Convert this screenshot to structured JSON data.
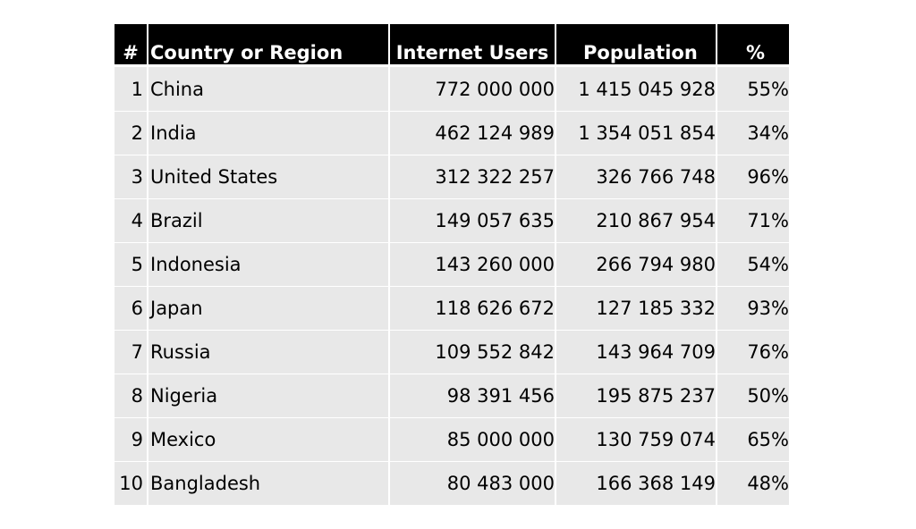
{
  "table": {
    "headers": {
      "rank": "#",
      "country": "Country or Region",
      "users": "Internet Users",
      "population": "Population",
      "percent": "%"
    },
    "rows": [
      {
        "rank": "1",
        "country": "China",
        "users": "772 000 000",
        "population": "1 415 045 928",
        "percent": "55%"
      },
      {
        "rank": "2",
        "country": "India",
        "users": "462 124 989",
        "population": "1 354 051 854",
        "percent": "34%"
      },
      {
        "rank": "3",
        "country": "United States",
        "users": "312 322 257",
        "population": "326 766 748",
        "percent": "96%"
      },
      {
        "rank": "4",
        "country": "Brazil",
        "users": "149 057 635",
        "population": "210 867 954",
        "percent": "71%"
      },
      {
        "rank": "5",
        "country": "Indonesia",
        "users": "143 260 000",
        "population": "266 794 980",
        "percent": "54%"
      },
      {
        "rank": "6",
        "country": "Japan",
        "users": "118 626 672",
        "population": "127 185 332",
        "percent": "93%"
      },
      {
        "rank": "7",
        "country": "Russia",
        "users": "109 552 842",
        "population": "143 964 709",
        "percent": "76%"
      },
      {
        "rank": "8",
        "country": "Nigeria",
        "users": "98 391 456",
        "population": "195 875 237",
        "percent": "50%"
      },
      {
        "rank": "9",
        "country": "Mexico",
        "users": "85 000 000",
        "population": "130 759 074",
        "percent": "65%"
      },
      {
        "rank": "10",
        "country": "Bangladesh",
        "users": "80 483 000",
        "population": "166 368 149",
        "percent": "48%"
      }
    ]
  }
}
